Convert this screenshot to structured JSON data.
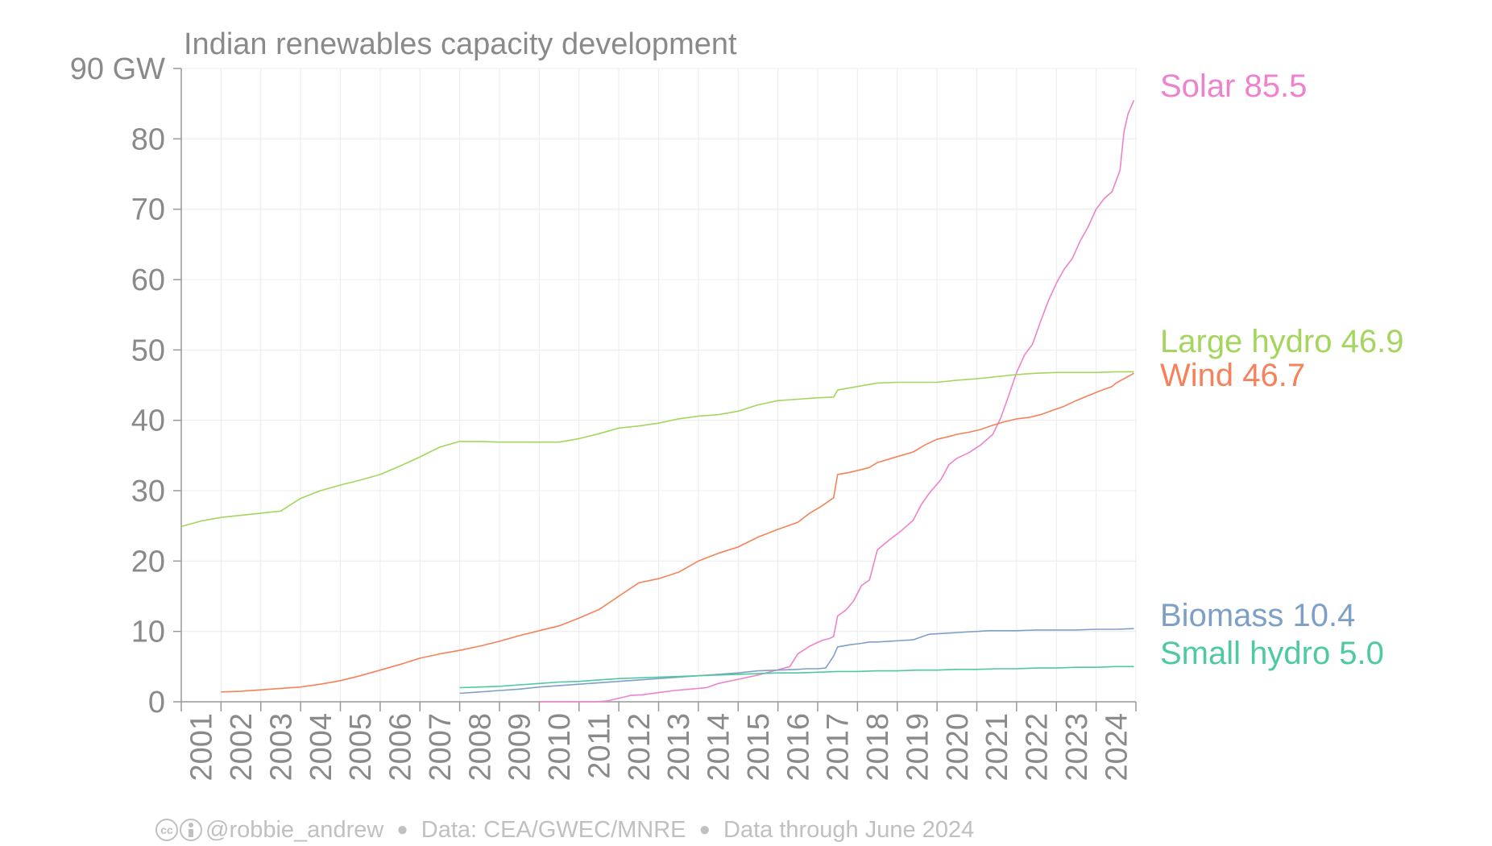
{
  "chart_data": {
    "type": "line",
    "title": "Indian renewables capacity development",
    "y_unit": "GW",
    "ylim": [
      0,
      90
    ],
    "yticks": [
      0,
      10,
      20,
      30,
      40,
      50,
      60,
      70,
      80,
      90
    ],
    "xlim": [
      2000.5,
      2024.5
    ],
    "xtick_labels": [
      "2001",
      "2002",
      "2003",
      "2004",
      "2005",
      "2006",
      "2007",
      "2008",
      "2009",
      "2010",
      "2011",
      "2012",
      "2013",
      "2014",
      "2015",
      "2016",
      "2017",
      "2018",
      "2019",
      "2020",
      "2021",
      "2022",
      "2023",
      "2024"
    ],
    "grid": true,
    "legend": "right, direct labels at line ends",
    "series": [
      {
        "name": "Solar",
        "end_label": "85.5",
        "color": "#ee82cc",
        "x": [
          2009.5,
          2010.0,
          2010.5,
          2010.9,
          2011.2,
          2011.5,
          2011.8,
          2012.1,
          2012.5,
          2012.9,
          2013.3,
          2013.7,
          2014.0,
          2014.5,
          2015.0,
          2015.4,
          2015.8,
          2016.0,
          2016.3,
          2016.6,
          2016.8,
          2016.9,
          2017.0,
          2017.2,
          2017.4,
          2017.6,
          2017.8,
          2018.0,
          2018.3,
          2018.6,
          2018.9,
          2019.1,
          2019.3,
          2019.6,
          2019.8,
          2020.0,
          2020.3,
          2020.6,
          2020.9,
          2021.1,
          2021.3,
          2021.5,
          2021.7,
          2021.9,
          2022.1,
          2022.3,
          2022.5,
          2022.7,
          2022.9,
          2023.1,
          2023.3,
          2023.5,
          2023.7,
          2023.9,
          2024.0,
          2024.1,
          2024.2,
          2024.3,
          2024.45
        ],
        "y": [
          0.0,
          0.0,
          0.0,
          0.0,
          0.1,
          0.5,
          0.9,
          1.0,
          1.3,
          1.6,
          1.8,
          2.0,
          2.6,
          3.2,
          3.8,
          4.4,
          5.0,
          6.8,
          7.9,
          8.7,
          9.0,
          9.3,
          12.2,
          13.0,
          14.3,
          16.5,
          17.3,
          21.6,
          23.0,
          24.3,
          25.8,
          28.0,
          29.6,
          31.6,
          33.7,
          34.6,
          35.4,
          36.5,
          38.0,
          40.3,
          43.5,
          46.8,
          49.3,
          50.8,
          54.0,
          57.0,
          59.5,
          61.5,
          63.0,
          65.5,
          67.5,
          70.0,
          71.5,
          72.5,
          74.0,
          75.5,
          81.0,
          83.5,
          85.5
        ]
      },
      {
        "name": "Large hydro",
        "end_label": "46.9",
        "color": "#a4d65e",
        "x": [
          2000.5,
          2001.0,
          2001.5,
          2002.0,
          2002.5,
          2003.0,
          2003.5,
          2004.0,
          2004.5,
          2005.0,
          2005.5,
          2006.0,
          2006.5,
          2007.0,
          2007.5,
          2007.8,
          2008.0,
          2008.5,
          2009.0,
          2009.5,
          2010.0,
          2010.5,
          2011.0,
          2011.5,
          2012.0,
          2012.5,
          2013.0,
          2013.5,
          2014.0,
          2014.5,
          2015.0,
          2015.5,
          2016.0,
          2016.5,
          2016.9,
          2017.0,
          2017.5,
          2018.0,
          2018.5,
          2019.0,
          2019.5,
          2020.0,
          2020.5,
          2021.0,
          2021.5,
          2022.0,
          2022.5,
          2023.0,
          2023.5,
          2024.0,
          2024.45
        ],
        "y": [
          24.9,
          25.7,
          26.2,
          26.5,
          26.8,
          27.1,
          28.9,
          30.0,
          30.8,
          31.5,
          32.3,
          33.5,
          34.8,
          36.2,
          37.0,
          37.0,
          37.0,
          36.9,
          36.9,
          36.9,
          36.9,
          37.4,
          38.1,
          38.9,
          39.2,
          39.6,
          40.2,
          40.6,
          40.8,
          41.3,
          42.2,
          42.8,
          43.0,
          43.2,
          43.3,
          44.3,
          44.8,
          45.3,
          45.4,
          45.4,
          45.4,
          45.7,
          45.9,
          46.2,
          46.5,
          46.7,
          46.8,
          46.8,
          46.8,
          46.9,
          46.9
        ]
      },
      {
        "name": "Wind",
        "end_label": "46.7",
        "color": "#f5825a",
        "x": [
          2001.5,
          2002.0,
          2002.5,
          2003.0,
          2003.5,
          2004.0,
          2004.5,
          2005.0,
          2005.5,
          2006.0,
          2006.5,
          2007.0,
          2007.5,
          2008.0,
          2008.5,
          2009.0,
          2009.5,
          2010.0,
          2010.5,
          2011.0,
          2011.5,
          2012.0,
          2012.5,
          2013.0,
          2013.5,
          2014.0,
          2014.5,
          2015.0,
          2015.5,
          2016.0,
          2016.3,
          2016.6,
          2016.9,
          2017.0,
          2017.3,
          2017.6,
          2017.8,
          2018.0,
          2018.3,
          2018.6,
          2018.9,
          2019.2,
          2019.5,
          2019.8,
          2020.0,
          2020.3,
          2020.6,
          2020.9,
          2021.2,
          2021.5,
          2021.8,
          2022.1,
          2022.4,
          2022.7,
          2023.0,
          2023.3,
          2023.6,
          2023.9,
          2024.0,
          2024.2,
          2024.45
        ],
        "y": [
          1.4,
          1.5,
          1.7,
          1.9,
          2.1,
          2.5,
          3.0,
          3.7,
          4.5,
          5.3,
          6.2,
          6.8,
          7.3,
          7.9,
          8.6,
          9.4,
          10.1,
          10.8,
          11.9,
          13.1,
          15.0,
          16.9,
          17.5,
          18.4,
          20.0,
          21.1,
          22.0,
          23.4,
          24.5,
          25.5,
          26.8,
          27.8,
          29.0,
          32.3,
          32.6,
          33.0,
          33.3,
          34.0,
          34.5,
          35.0,
          35.5,
          36.5,
          37.3,
          37.7,
          38.0,
          38.3,
          38.7,
          39.3,
          39.8,
          40.2,
          40.4,
          40.8,
          41.4,
          42.0,
          42.8,
          43.5,
          44.2,
          44.8,
          45.3,
          45.9,
          46.7
        ]
      },
      {
        "name": "Biomass",
        "end_label": "10.4",
        "color": "#7ea0c8",
        "x": [
          2007.5,
          2008.0,
          2008.5,
          2009.0,
          2009.5,
          2010.0,
          2010.5,
          2011.0,
          2011.5,
          2012.0,
          2012.5,
          2013.0,
          2013.5,
          2014.0,
          2014.5,
          2015.0,
          2015.5,
          2016.0,
          2016.2,
          2016.5,
          2016.7,
          2016.9,
          2017.0,
          2017.3,
          2017.6,
          2017.8,
          2018.0,
          2018.3,
          2018.6,
          2018.9,
          2019.0,
          2019.3,
          2019.6,
          2019.9,
          2020.2,
          2020.5,
          2020.8,
          2021.0,
          2021.5,
          2022.0,
          2022.5,
          2023.0,
          2023.5,
          2024.0,
          2024.45
        ],
        "y": [
          1.2,
          1.4,
          1.6,
          1.8,
          2.1,
          2.3,
          2.5,
          2.7,
          2.9,
          3.1,
          3.3,
          3.5,
          3.7,
          3.9,
          4.1,
          4.4,
          4.5,
          4.6,
          4.7,
          4.7,
          4.8,
          6.5,
          7.8,
          8.1,
          8.3,
          8.5,
          8.5,
          8.6,
          8.7,
          8.8,
          9.0,
          9.6,
          9.7,
          9.8,
          9.9,
          10.0,
          10.1,
          10.1,
          10.1,
          10.2,
          10.2,
          10.2,
          10.3,
          10.3,
          10.4
        ]
      },
      {
        "name": "Small hydro",
        "end_label": "5.0",
        "color": "#4ec9a0",
        "x": [
          2007.5,
          2008.0,
          2008.5,
          2009.0,
          2009.5,
          2010.0,
          2010.5,
          2011.0,
          2011.5,
          2012.0,
          2012.5,
          2013.0,
          2013.5,
          2014.0,
          2014.5,
          2015.0,
          2015.5,
          2016.0,
          2016.5,
          2017.0,
          2017.5,
          2018.0,
          2018.5,
          2019.0,
          2019.5,
          2020.0,
          2020.5,
          2021.0,
          2021.5,
          2022.0,
          2022.5,
          2023.0,
          2023.5,
          2024.0,
          2024.45
        ],
        "y": [
          2.0,
          2.1,
          2.2,
          2.4,
          2.6,
          2.8,
          2.9,
          3.1,
          3.3,
          3.4,
          3.5,
          3.6,
          3.7,
          3.8,
          3.9,
          4.0,
          4.1,
          4.1,
          4.2,
          4.3,
          4.3,
          4.4,
          4.4,
          4.5,
          4.5,
          4.6,
          4.6,
          4.7,
          4.7,
          4.8,
          4.8,
          4.9,
          4.9,
          5.0,
          5.0
        ]
      }
    ]
  },
  "footer": {
    "credit": "@robbie_andrew",
    "source": "Data: CEA/GWEC/MNRE",
    "coverage": "Data through June 2024"
  }
}
